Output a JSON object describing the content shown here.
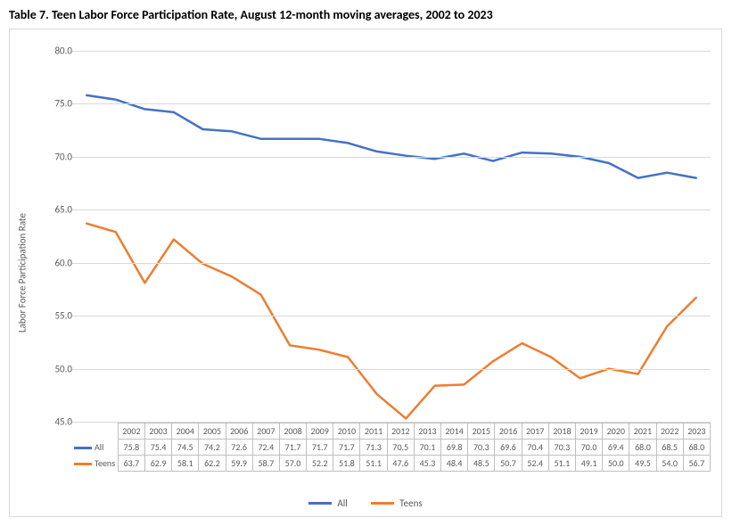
{
  "title": "Table 7. Teen Labor Force Participation Rate, August 12-month moving averages, 2002 to 2023",
  "yaxis_label": "Labor Force Participation Rate",
  "chart": {
    "type": "line",
    "background_color": "#ffffff",
    "grid_color": "#d9d9d9",
    "border_color": "#d9d9d9",
    "text_color": "#595959",
    "title_fontsize": 14,
    "label_fontsize": 11,
    "tick_fontsize": 10,
    "ylim": [
      45.0,
      80.0
    ],
    "ytick_step": 5.0,
    "yticks": [
      45.0,
      50.0,
      55.0,
      60.0,
      65.0,
      70.0,
      75.0,
      80.0
    ],
    "line_width": 2.5,
    "categories": [
      "2002",
      "2003",
      "2004",
      "2005",
      "2006",
      "2007",
      "2008",
      "2009",
      "2010",
      "2011",
      "2012",
      "2013",
      "2014",
      "2015",
      "2016",
      "2017",
      "2018",
      "2019",
      "2020",
      "2021",
      "2022",
      "2023"
    ],
    "series": [
      {
        "name": "All",
        "color": "#4472c4",
        "values": [
          75.8,
          75.4,
          74.5,
          74.2,
          72.6,
          72.4,
          71.7,
          71.7,
          71.7,
          71.3,
          70.5,
          70.1,
          69.8,
          70.3,
          69.6,
          70.4,
          70.3,
          70.0,
          69.4,
          68.0,
          68.5,
          68.0
        ]
      },
      {
        "name": "Teens",
        "color": "#ed7d31",
        "values": [
          63.7,
          62.9,
          58.1,
          62.2,
          59.9,
          58.7,
          57.0,
          52.2,
          51.8,
          51.1,
          47.6,
          45.3,
          48.4,
          48.5,
          50.7,
          52.4,
          51.1,
          49.1,
          50.0,
          49.5,
          54.0,
          56.7
        ]
      }
    ]
  },
  "legend": {
    "all_label": "All",
    "teens_label": "Teens"
  }
}
